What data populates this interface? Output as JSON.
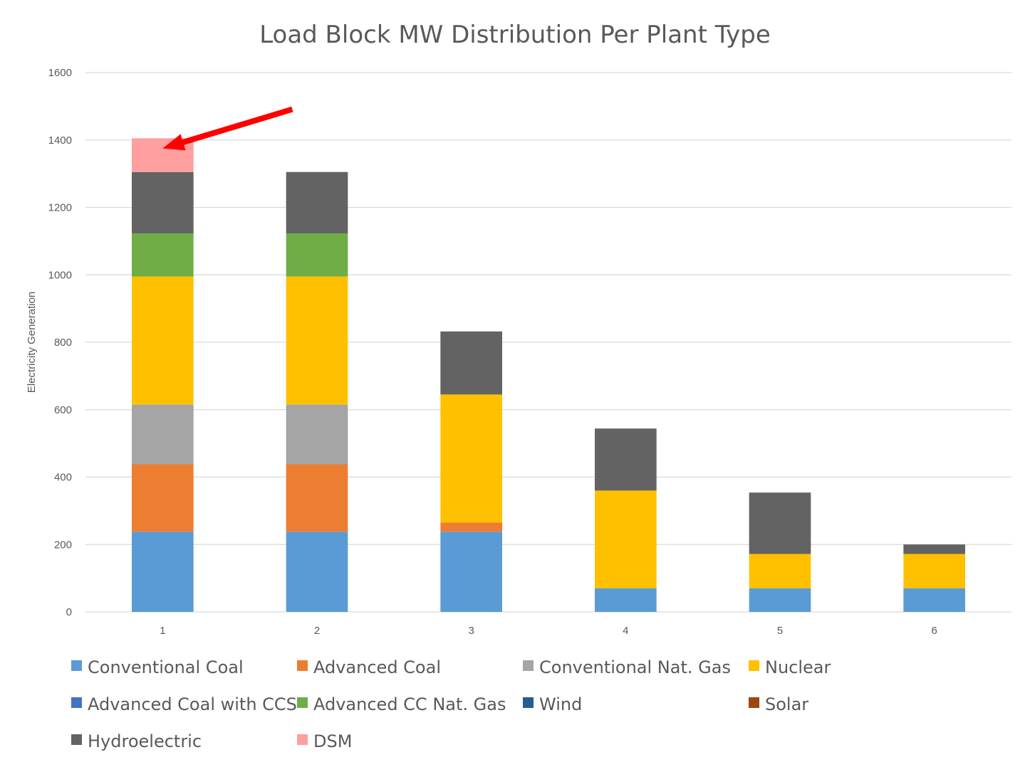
{
  "chart_data": {
    "type": "bar",
    "stacked": true,
    "title": "Load Block MW Distribution Per Plant Type",
    "xlabel": "",
    "ylabel": "Electricity Generation",
    "categories": [
      "1",
      "2",
      "3",
      "4",
      "5",
      "6"
    ],
    "ylim": [
      0,
      1600
    ],
    "yticks": [
      "0",
      "200",
      "400",
      "600",
      "800",
      "1000",
      "1200",
      "1400",
      "1600"
    ],
    "grid": true,
    "legend_position": "bottom",
    "series": [
      {
        "name": "Conventional Coal",
        "color": "#5B9BD5",
        "values": [
          238,
          238,
          238,
          70,
          70,
          70
        ]
      },
      {
        "name": "Advanced Coal",
        "color": "#ED7D31",
        "values": [
          200,
          200,
          27,
          0,
          0,
          0
        ]
      },
      {
        "name": "Conventional Nat. Gas",
        "color": "#A5A5A5",
        "values": [
          177,
          177,
          0,
          0,
          0,
          0
        ]
      },
      {
        "name": "Nuclear",
        "color": "#FFC000",
        "values": [
          380,
          380,
          380,
          290,
          102,
          102
        ]
      },
      {
        "name": "Advanced Coal with CCS",
        "color": "#4472C4",
        "values": [
          0,
          0,
          0,
          0,
          0,
          0
        ]
      },
      {
        "name": "Advanced CC Nat. Gas",
        "color": "#70AD47",
        "values": [
          128,
          128,
          0,
          0,
          0,
          0
        ]
      },
      {
        "name": "Wind",
        "color": "#255E91",
        "values": [
          0,
          0,
          0,
          0,
          0,
          0
        ]
      },
      {
        "name": "Solar",
        "color": "#9E480E",
        "values": [
          0,
          0,
          0,
          0,
          0,
          0
        ]
      },
      {
        "name": "Hydroelectric",
        "color": "#636363",
        "values": [
          182,
          182,
          187,
          184,
          182,
          28
        ]
      },
      {
        "name": "DSM",
        "color": "#FF9F9F",
        "values": [
          100,
          0,
          0,
          0,
          0,
          0
        ]
      }
    ],
    "annotations": [
      {
        "type": "arrow",
        "color": "#FF0000",
        "target_category": "1",
        "target_series": "DSM"
      }
    ]
  }
}
